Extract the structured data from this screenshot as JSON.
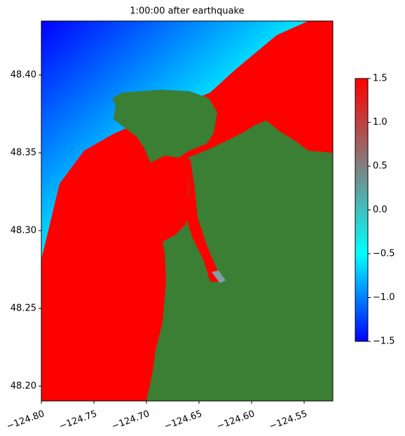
{
  "chart_data": {
    "type": "image",
    "title": "1:00:00 after earthquake",
    "xlim": [
      -124.8,
      -124.5227
    ],
    "ylim": [
      48.1905,
      48.4347
    ],
    "xticks": [
      {
        "value": -124.8,
        "label": "−124.80"
      },
      {
        "value": -124.75,
        "label": "−124.75"
      },
      {
        "value": -124.7,
        "label": "−124.70"
      },
      {
        "value": -124.65,
        "label": "−124.65"
      },
      {
        "value": -124.6,
        "label": "−124.60"
      },
      {
        "value": -124.55,
        "label": "−124.55"
      }
    ],
    "yticks": [
      {
        "value": 48.2,
        "label": "48.20"
      },
      {
        "value": 48.25,
        "label": "48.25"
      },
      {
        "value": 48.3,
        "label": "48.30"
      },
      {
        "value": 48.35,
        "label": "48.35"
      },
      {
        "value": 48.4,
        "label": "48.40"
      }
    ],
    "colorbar": {
      "clim": [
        -1.5,
        1.5
      ],
      "ticks": [
        {
          "value": -1.5,
          "label": "−1.5"
        },
        {
          "value": -1,
          "label": "−1.0"
        },
        {
          "value": -0.5,
          "label": "−0.5"
        },
        {
          "value": 0,
          "label": "0.0"
        },
        {
          "value": 0.5,
          "label": "0.5"
        },
        {
          "value": 1,
          "label": "1.0"
        },
        1.5
      ],
      "colormap": [
        "#0000ff",
        "#00ffff",
        "#808080",
        "#ff0000"
      ]
    },
    "land_color": "#3a7f34"
  }
}
